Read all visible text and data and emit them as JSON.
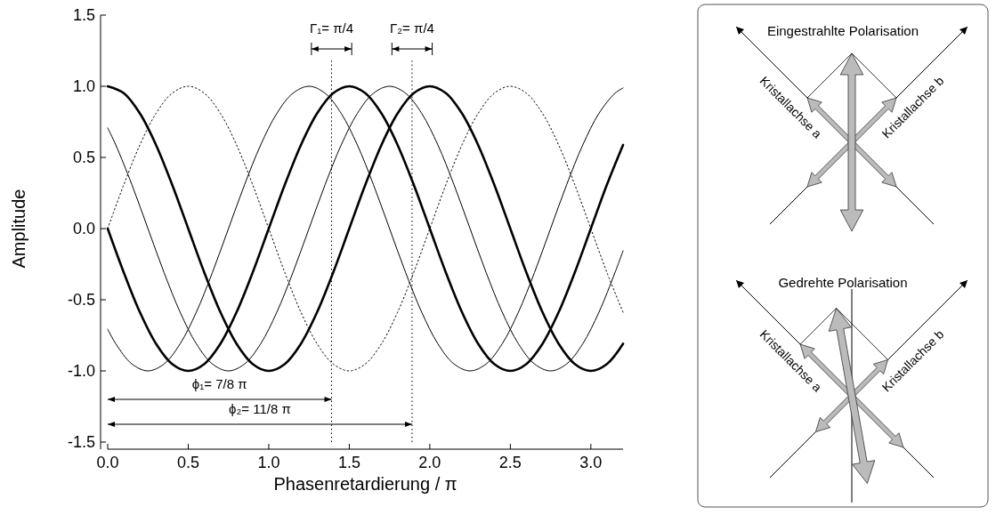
{
  "chart_data": [
    {
      "type": "line",
      "xlabel": "Phasenretardierung / π",
      "ylabel": "Amplitude",
      "xlim": [
        0,
        3.2
      ],
      "ylim": [
        -1.5,
        1.5
      ],
      "xticks": [
        {
          "value": 0,
          "label": "0.0"
        },
        {
          "value": 0.5,
          "label": "0.5"
        },
        {
          "value": 1,
          "label": "1.0"
        },
        {
          "value": 1.5,
          "label": "1.5"
        },
        {
          "value": 2,
          "label": "2.0"
        },
        {
          "value": 2.5,
          "label": "2.5"
        },
        {
          "value": 3,
          "label": "3.0"
        }
      ],
      "yticks": [
        {
          "value": -1.5,
          "label": "-1.5"
        },
        {
          "value": -1,
          "label": "-1.0"
        },
        {
          "value": -0.5,
          "label": "-0.5"
        },
        {
          "value": 0,
          "label": "0.0"
        },
        {
          "value": 0.5,
          "label": "0.5"
        },
        {
          "value": 1,
          "label": "1.0"
        },
        {
          "value": 1.5,
          "label": "1.5"
        }
      ],
      "grid": false,
      "marker": "none",
      "series": [
        {
          "color": "#000000",
          "line_style": "solid",
          "x": [
            0,
            0.1,
            0.2,
            0.3,
            0.4,
            0.5,
            0.6,
            0.7,
            0.8,
            0.9,
            1,
            1.1,
            1.2,
            1.3,
            1.4,
            1.5,
            1.6,
            1.7,
            1.8,
            1.9,
            2,
            2.1,
            2.2,
            2.3,
            2.4,
            2.5,
            2.6,
            2.7,
            2.8,
            2.9,
            3,
            3.1,
            3.2
          ],
          "values": [
            1,
            0.951,
            0.809,
            0.588,
            0.309,
            0,
            -0.309,
            -0.588,
            -0.809,
            -0.951,
            -1,
            -0.951,
            -0.809,
            -0.588,
            -0.309,
            0,
            0.309,
            0.588,
            0.809,
            0.951,
            1,
            0.951,
            0.809,
            0.588,
            0.309,
            0,
            -0.309,
            -0.588,
            -0.809,
            -0.951,
            -1,
            -0.951,
            -0.809
          ]
        },
        {
          "color": "#000000",
          "line_style": "solid",
          "x": [
            0,
            0.1,
            0.2,
            0.3,
            0.4,
            0.5,
            0.6,
            0.7,
            0.8,
            0.9,
            1,
            1.1,
            1.2,
            1.3,
            1.4,
            1.5,
            1.6,
            1.7,
            1.8,
            1.9,
            2,
            2.1,
            2.2,
            2.3,
            2.4,
            2.5,
            2.6,
            2.7,
            2.8,
            2.9,
            3,
            3.1,
            3.2
          ],
          "values": [
            0,
            -0.309,
            -0.588,
            -0.809,
            -0.951,
            -1,
            -0.951,
            -0.809,
            -0.588,
            -0.309,
            0,
            0.309,
            0.588,
            0.809,
            0.951,
            1,
            0.951,
            0.809,
            0.588,
            0.309,
            0,
            -0.309,
            -0.588,
            -0.809,
            -0.951,
            -1,
            -0.951,
            -0.809,
            -0.588,
            -0.309,
            0,
            0.309,
            0.588
          ]
        },
        {
          "color": "#000000",
          "line_style": "solid",
          "x": [
            0,
            0.05,
            0.15,
            0.25,
            0.35,
            0.45,
            0.55,
            0.65,
            0.75,
            0.85,
            0.95,
            1.05,
            1.15,
            1.25,
            1.35,
            1.45,
            1.55,
            1.65,
            1.75,
            1.85,
            1.95,
            2.05,
            2.15,
            2.25,
            2.35,
            2.45,
            2.55,
            2.65,
            2.75,
            2.85,
            2.95,
            3.05,
            3.15,
            3.2
          ],
          "values": [
            0.707,
            0.588,
            0.309,
            0,
            -0.309,
            -0.588,
            -0.809,
            -0.951,
            -1,
            -0.951,
            -0.809,
            -0.588,
            -0.309,
            0,
            0.309,
            0.588,
            0.809,
            0.951,
            1,
            0.951,
            0.809,
            0.588,
            0.309,
            0,
            -0.309,
            -0.588,
            -0.809,
            -0.951,
            -1,
            -0.951,
            -0.809,
            -0.588,
            -0.309,
            -0.156
          ]
        },
        {
          "color": "#000000",
          "line_style": "solid",
          "x": [
            0,
            0.05,
            0.15,
            0.25,
            0.35,
            0.45,
            0.55,
            0.65,
            0.75,
            0.85,
            0.95,
            1.05,
            1.15,
            1.25,
            1.35,
            1.45,
            1.55,
            1.65,
            1.75,
            1.85,
            1.95,
            2.05,
            2.15,
            2.25,
            2.35,
            2.45,
            2.55,
            2.65,
            2.75,
            2.85,
            2.95,
            3.05,
            3.15,
            3.2
          ],
          "values": [
            -0.707,
            -0.809,
            -0.951,
            -1,
            -0.951,
            -0.809,
            -0.588,
            -0.309,
            0,
            0.309,
            0.588,
            0.809,
            0.951,
            1,
            0.951,
            0.809,
            0.588,
            0.309,
            0,
            -0.309,
            -0.588,
            -0.809,
            -0.951,
            -1,
            -0.951,
            -0.809,
            -0.588,
            -0.309,
            0,
            0.309,
            0.588,
            0.809,
            0.951,
            0.988
          ]
        },
        {
          "color": "#000000",
          "line_style": "dotted",
          "x": [
            0,
            0.1,
            0.2,
            0.3,
            0.4,
            0.5,
            0.6,
            0.7,
            0.8,
            0.9,
            1,
            1.1,
            1.2,
            1.3,
            1.4,
            1.5,
            1.6,
            1.7,
            1.8,
            1.9,
            2,
            2.1,
            2.2,
            2.3,
            2.4,
            2.5,
            2.6,
            2.7,
            2.8,
            2.9,
            3,
            3.1,
            3.2
          ],
          "values": [
            0,
            0.309,
            0.588,
            0.809,
            0.951,
            1,
            0.951,
            0.809,
            0.588,
            0.309,
            0,
            -0.309,
            -0.588,
            -0.809,
            -0.951,
            -1,
            -0.951,
            -0.809,
            -0.588,
            -0.309,
            0,
            0.309,
            0.588,
            0.809,
            0.951,
            1,
            0.951,
            0.809,
            0.588,
            0.309,
            0,
            -0.309,
            -0.588
          ]
        }
      ],
      "ref_lines": [
        {
          "axis": "x",
          "value": 1.39,
          "line_style": "dotted",
          "color": "#000000"
        },
        {
          "axis": "x",
          "value": 1.89,
          "line_style": "dotted",
          "color": "#000000"
        }
      ],
      "annotations": [
        "Γ₁= π/4",
        "Γ₂= π/4",
        "ϕ₁= 7/8 π",
        "ϕ₂= 11/8 π"
      ]
    },
    {
      "type": "other",
      "annotations": [
        "Eingestrahlte Polarisation",
        "Kristallachse a",
        "Kristallachse b",
        "Gedrehte Polarisation",
        "Kristallachse a",
        "Kristallachse b"
      ]
    }
  ]
}
